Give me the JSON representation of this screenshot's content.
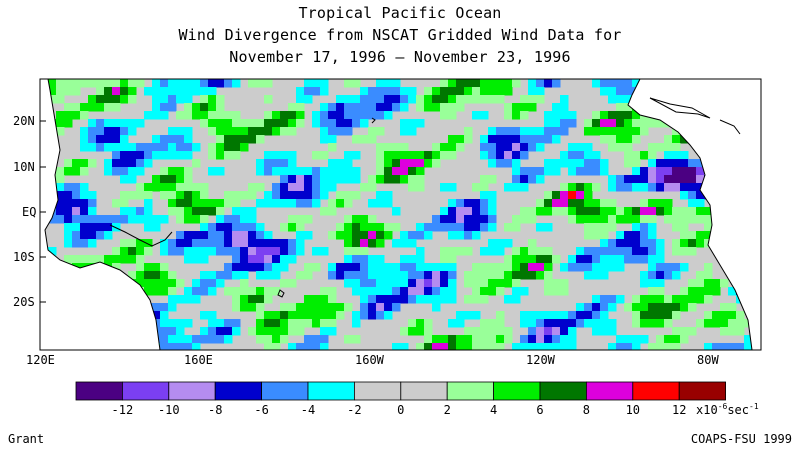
{
  "title": {
    "line1": "Tropical Pacific Ocean",
    "line2": "Wind Divergence from NSCAT Gridded Wind Data for",
    "line3": "November 17, 1996 – November 23, 1996"
  },
  "axes": {
    "lon_labels": [
      "120E",
      "160E",
      "160W",
      "120W",
      "80W"
    ],
    "lat_labels": [
      "20N",
      "10N",
      "EQ",
      "10S",
      "20S"
    ]
  },
  "colorbar": {
    "colors": [
      "#4b0082",
      "#7b3ff2",
      "#b58cf0",
      "#0000cd",
      "#3a8cff",
      "#00ffff",
      "#cccccc",
      "#cccccc",
      "#99ff99",
      "#00ee00",
      "#007700",
      "#dd00dd",
      "#ff0000",
      "#990000"
    ],
    "tick_labels": [
      "-12",
      "-10",
      "-8",
      "-6",
      "-4",
      "-2",
      "0",
      "2",
      "4",
      "6",
      "8",
      "10",
      "12"
    ],
    "unit_prefix": "x10",
    "unit_exp": "-6",
    "unit_suffix": "sec",
    "unit_exp2": "-1"
  },
  "credits": {
    "left": "Grant",
    "right": "COAPS-FSU 1999"
  }
}
